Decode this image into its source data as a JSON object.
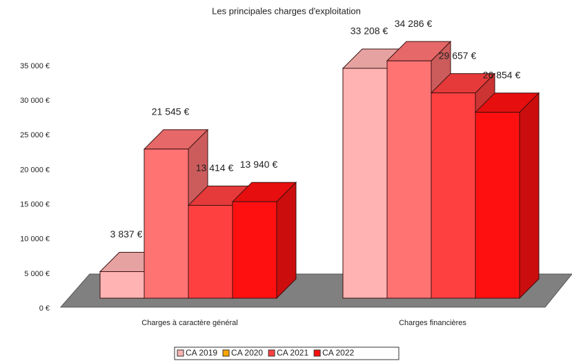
{
  "chart_data": {
    "type": "bar3d",
    "title": "Les principales charges d'exploitation",
    "categories": [
      "Charges à caractère général",
      "Charges financières"
    ],
    "series": [
      {
        "name": "CA 2019",
        "color": "#ffb3b3",
        "legend_color": "#ffb3b3",
        "values": [
          3837,
          33208
        ],
        "value_labels": [
          "3 837 €",
          "33 208 €"
        ]
      },
      {
        "name": "CA 2020",
        "color": "#ff7373",
        "legend_color": "#ffa500",
        "values": [
          21545,
          34286
        ],
        "value_labels": [
          "21 545 €",
          "34 286 €"
        ]
      },
      {
        "name": "CA 2021",
        "color": "#ff4040",
        "legend_color": "#ff4040",
        "values": [
          13414,
          29657
        ],
        "value_labels": [
          "13 414 €",
          "29 657 €"
        ]
      },
      {
        "name": "CA 2022",
        "color": "#ff1010",
        "legend_color": "#ff1010",
        "values": [
          13940,
          26854
        ],
        "value_labels": [
          "13 940 €",
          "26 854 €"
        ]
      }
    ],
    "ylim": [
      0,
      35000
    ],
    "yticks": [
      {
        "value": 0,
        "label": "0 €"
      },
      {
        "value": 5000,
        "label": "5 000 €"
      },
      {
        "value": 10000,
        "label": "10 000 €"
      },
      {
        "value": 15000,
        "label": "15 000 €"
      },
      {
        "value": 20000,
        "label": "20 000 €"
      },
      {
        "value": 25000,
        "label": "25 000 €"
      },
      {
        "value": 30000,
        "label": "30 000 €"
      },
      {
        "value": 35000,
        "label": "35 000 €"
      }
    ]
  }
}
